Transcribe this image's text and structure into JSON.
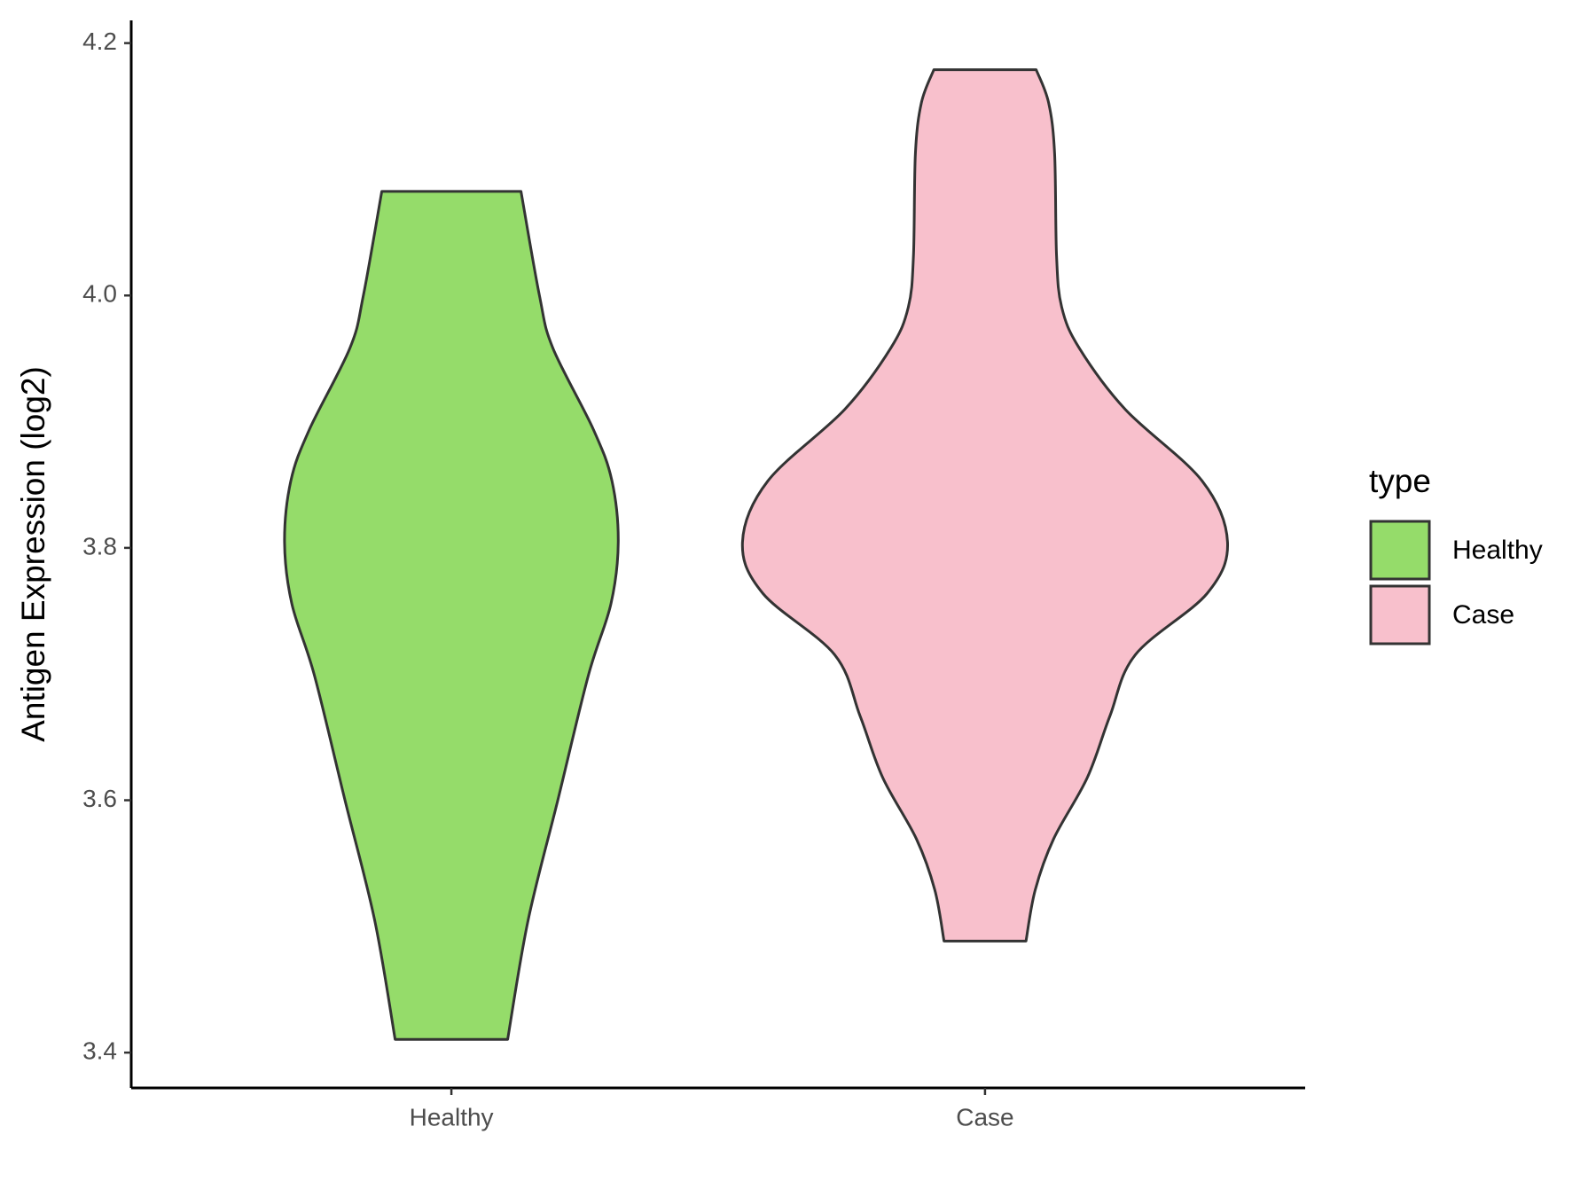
{
  "chart_data": {
    "type": "violin",
    "ylabel": "Antigen Expression (log2)",
    "categories": [
      "Healthy",
      "Case"
    ],
    "legend_title": "type",
    "legend": "right",
    "ylim": [
      3.372,
      4.218
    ],
    "yticks": [
      3.4,
      3.6,
      3.8,
      {
        "value": 4,
        "label": "4.0"
      },
      4.2
    ],
    "series": [
      {
        "name": "Healthy",
        "color": "#95dc6a",
        "y": [
          4.0825,
          4.0,
          3.9585,
          3.8936,
          3.8531,
          3.8045,
          3.7558,
          3.6991,
          3.6002,
          3.5046,
          3.4105
        ],
        "density": [
          0.287,
          0.363,
          0.418,
          0.586,
          0.662,
          0.688,
          0.658,
          0.565,
          0.439,
          0.316,
          0.232
        ]
      },
      {
        "name": "Case",
        "color": "#f8c0cc",
        "y": [
          4.1789,
          4.153,
          4.1125,
          4.0314,
          3.9909,
          3.9585,
          3.9098,
          3.8531,
          3.8045,
          3.7639,
          3.7153,
          3.6667,
          3.618,
          3.5694,
          3.5289,
          3.4884
        ],
        "density": [
          0.211,
          0.262,
          0.287,
          0.295,
          0.316,
          0.388,
          0.578,
          0.895,
          1,
          0.916,
          0.62,
          0.515,
          0.422,
          0.283,
          0.207,
          0.169
        ]
      }
    ]
  }
}
